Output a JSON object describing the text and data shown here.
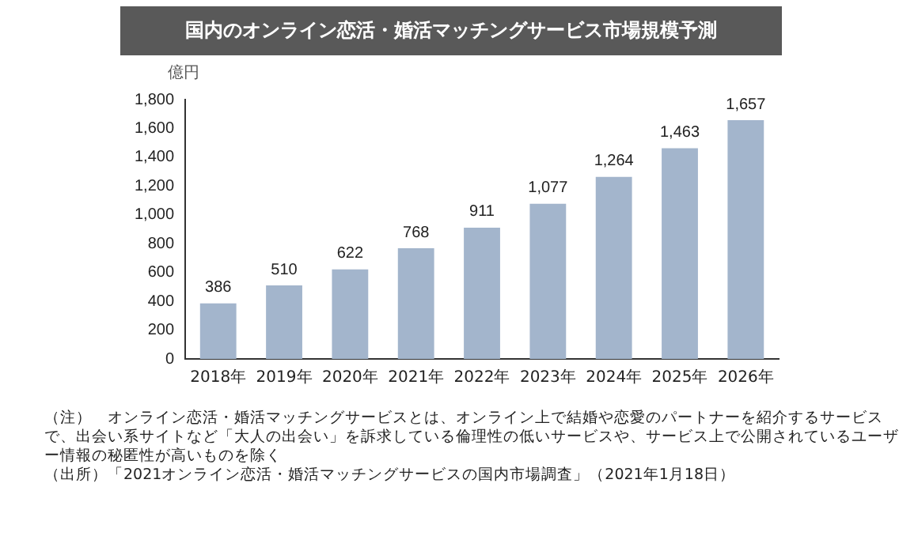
{
  "chart_data": {
    "type": "bar",
    "title": "国内のオンライン恋活・婚活マッチングサービス市場規模予測",
    "ylabel": "億円",
    "categories": [
      "2018年",
      "2019年",
      "2020年",
      "2021年",
      "2022年",
      "2023年",
      "2024年",
      "2025年",
      "2026年"
    ],
    "values": [
      386,
      510,
      622,
      768,
      911,
      1077,
      1264,
      1463,
      1657
    ],
    "color": "#a3b5cc",
    "ylim": [
      0,
      1800
    ],
    "yticks": [
      {
        "value": 0,
        "label": "0"
      },
      {
        "value": 200,
        "label": "200"
      },
      {
        "value": 400,
        "label": "400"
      },
      {
        "value": 600,
        "label": "600"
      },
      {
        "value": 800,
        "label": "800"
      },
      {
        "value": 1000,
        "label": "1,000"
      },
      {
        "value": 1200,
        "label": "1,200"
      },
      {
        "value": 1400,
        "label": "1,400"
      },
      {
        "value": 1600,
        "label": "1,600"
      },
      {
        "value": 1800,
        "label": "1,800"
      }
    ],
    "value_labels": [
      "386",
      "510",
      "622",
      "768",
      "911",
      "1,077",
      "1,264",
      "1,463",
      "1,657"
    ],
    "grid": false,
    "legend": false,
    "annotations": [
      "（注）　オンライン恋活・婚活マッチングサービスとは、オンライン上で結婚や恋愛のパートナーを紹介するサービスで、出会い系サイトなど「大人の出会い」を訴求している倫理性の低いサービスや、サービス上で公開されているユーザー情報の秘匿性が高いものを除く",
      "（出所）「2021オンライン恋活・婚活マッチングサービスの国内市場調査」（2021年1月18日）"
    ]
  }
}
